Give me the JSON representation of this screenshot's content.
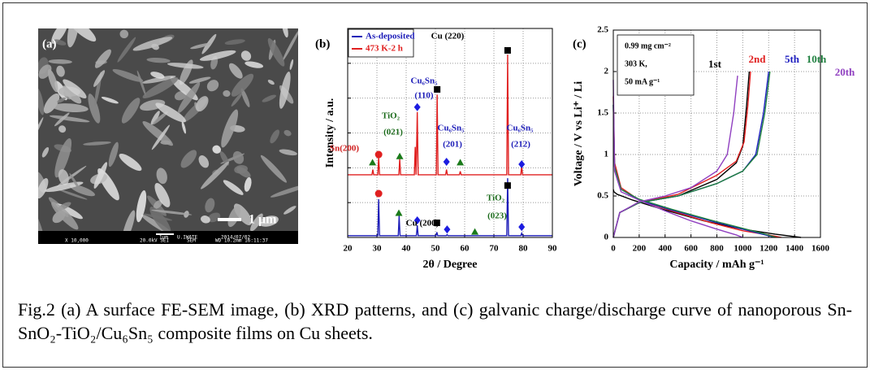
{
  "sem_image": {
    "label": "(a)",
    "scale_bar": "1 μm",
    "info_mag": "X 10,000",
    "info_kv": "20.0kV SEI",
    "info_mode": "SEM",
    "info_wd": "WD 10.2mm 16:11:37",
    "info_scale": "1μm",
    "info_org": "U.IWATE",
    "info_date": "2014/07/02"
  },
  "chart_data": [
    {
      "type": "line",
      "panel_label": "(b)",
      "x_label": "2θ / Degree",
      "y_label": "Intensity / a.u.",
      "xlim": [
        20,
        90
      ],
      "xticks": [
        20,
        30,
        40,
        50,
        60,
        70,
        80,
        90
      ],
      "ylim": [
        0,
        6
      ],
      "yticks": [
        0,
        1,
        2,
        3,
        4,
        5,
        6
      ],
      "ytick_labels": false,
      "grid": true,
      "legend": "upper left",
      "series": [
        {
          "name": "As-deposited",
          "color": "#1c1cb8",
          "x": [
            20,
            30.3,
            30.6,
            30.9,
            37.3,
            37.6,
            37.9,
            43.5,
            43.8,
            44.1,
            50.2,
            50.5,
            50.8,
            53.7,
            54,
            54.3,
            74.4,
            74.7,
            75,
            79.2,
            79.5,
            79.8,
            90
          ],
          "values": [
            0.05,
            0.05,
            1.1,
            0.05,
            0.05,
            0.62,
            0.05,
            0.05,
            0.35,
            0.05,
            0.05,
            0.15,
            0.05,
            0.05,
            0.08,
            0.05,
            0.05,
            1.7,
            0.05,
            0.05,
            0.12,
            0.05,
            0.05
          ]
        },
        {
          "name": "473 K-2 h",
          "color": "#e02020",
          "x": [
            20,
            28.3,
            28.6,
            28.9,
            30.3,
            30.6,
            30.9,
            37.5,
            37.8,
            38.1,
            42.8,
            43.1,
            43.4,
            43.8,
            44.1,
            50.3,
            50.6,
            50.9,
            53.5,
            53.8,
            54.1,
            58.2,
            58.5,
            58.8,
            74.4,
            74.7,
            75,
            79.2,
            79.5,
            79.8,
            90
          ],
          "values": [
            1.8,
            1.8,
            1.95,
            1.8,
            1.8,
            2.3,
            1.8,
            1.8,
            2.25,
            1.8,
            1.8,
            2.6,
            1.8,
            3.6,
            1.8,
            1.8,
            4.1,
            1.8,
            1.8,
            1.95,
            1.8,
            1.8,
            1.9,
            1.8,
            1.8,
            5.25,
            1.8,
            1.8,
            2.05,
            1.8,
            1.8
          ]
        }
      ],
      "markers": [
        {
          "shape": "square",
          "color": "#000000",
          "x": 74.7,
          "y": 5.37
        },
        {
          "shape": "square",
          "color": "#000000",
          "x": 50.6,
          "y": 4.25
        },
        {
          "shape": "diamond",
          "color": "#1c1ce0",
          "x": 43.8,
          "y": 3.74
        },
        {
          "shape": "circle",
          "color": "#e02020",
          "x": 30.6,
          "y": 2.38
        },
        {
          "shape": "triangle",
          "color": "#1a7a1a",
          "x": 37.8,
          "y": 2.33
        },
        {
          "shape": "triangle",
          "color": "#1a7a1a",
          "x": 28.5,
          "y": 2.15
        },
        {
          "shape": "triangle",
          "color": "#1a7a1a",
          "x": 58.5,
          "y": 2.15
        },
        {
          "shape": "diamond",
          "color": "#1c1ce0",
          "x": 53.8,
          "y": 2.17
        },
        {
          "shape": "diamond",
          "color": "#1c1ce0",
          "x": 79.5,
          "y": 2.1
        },
        {
          "shape": "circle",
          "color": "#e02020",
          "x": 30.6,
          "y": 1.26
        },
        {
          "shape": "triangle",
          "color": "#1a7a1a",
          "x": 37.5,
          "y": 0.7
        },
        {
          "shape": "diamond",
          "color": "#1c1ce0",
          "x": 43.8,
          "y": 0.49
        },
        {
          "shape": "square",
          "color": "#000000",
          "x": 50.5,
          "y": 0.42
        },
        {
          "shape": "diamond",
          "color": "#1c1ce0",
          "x": 54,
          "y": 0.23
        },
        {
          "shape": "square",
          "color": "#000000",
          "x": 74.7,
          "y": 1.49
        },
        {
          "shape": "triangle",
          "color": "#1a7a1a",
          "x": 63.5,
          "y": 0.16
        },
        {
          "shape": "diamond",
          "color": "#1c1ce0",
          "x": 79.5,
          "y": 0.3
        }
      ],
      "annotations": [
        {
          "text": "Cu (220)",
          "color": "#000000"
        },
        {
          "text": "Cu₆Sn₅",
          "color": "#1c1cb8"
        },
        {
          "text": "(110)",
          "color": "#1c1cb8"
        },
        {
          "text": "TiO₂",
          "color": "#1a6a1a"
        },
        {
          "text": "(021)",
          "color": "#1a6a1a"
        },
        {
          "text": "Sn(200)",
          "color": "#d02020"
        },
        {
          "text": "Cu₆Sn₅",
          "color": "#1c1cb8"
        },
        {
          "text": "(201)",
          "color": "#1c1cb8"
        },
        {
          "text": "Cu₆Sn₅",
          "color": "#1c1cb8"
        },
        {
          "text": "(212)",
          "color": "#1c1cb8"
        },
        {
          "text": "Cu (200)",
          "color": "#000000"
        },
        {
          "text": "TiO₂",
          "color": "#1a6a1a"
        },
        {
          "text": "(023)",
          "color": "#1a6a1a"
        }
      ]
    },
    {
      "type": "line",
      "panel_label": "(c)",
      "x_label": "Capacity / mAh g⁻¹",
      "y_label": "Voltage / V vs Li⁺ / Li",
      "xlim": [
        0,
        1600
      ],
      "xticks": [
        0,
        200,
        400,
        600,
        800,
        1000,
        1200,
        1400,
        1600
      ],
      "ylim": [
        0,
        2.5
      ],
      "yticks": [
        0,
        0.5,
        1,
        1.5,
        2,
        2.5
      ],
      "grid": true,
      "inset": [
        "0.99 mg cm⁻²",
        "303 K,",
        "50 mA g⁻¹"
      ],
      "series": [
        {
          "name": "1st",
          "color": "#000000",
          "x": [
            0,
            5,
            30,
            150,
            400,
            700,
            1000,
            1250,
            1450,
            null,
            0,
            50,
            200,
            500,
            800,
            950,
            1000,
            1030,
            1050
          ],
          "values": [
            0.58,
            0.55,
            0.52,
            0.45,
            0.33,
            0.2,
            0.1,
            0.04,
            0,
            null,
            0,
            0.3,
            0.42,
            0.5,
            0.7,
            0.9,
            1.1,
            1.6,
            2.0
          ]
        },
        {
          "name": "2nd",
          "color": "#e02020",
          "x": [
            0,
            10,
            60,
            200,
            450,
            750,
            1000,
            1200,
            1300,
            null,
            0,
            50,
            200,
            500,
            800,
            950,
            1010,
            1040,
            1060
          ],
          "values": [
            1.7,
            0.9,
            0.6,
            0.45,
            0.32,
            0.18,
            0.08,
            0.03,
            0,
            null,
            0,
            0.3,
            0.42,
            0.52,
            0.75,
            0.92,
            1.15,
            1.6,
            2.0
          ]
        },
        {
          "name": "5th",
          "color": "#2020c0",
          "x": [
            0,
            10,
            60,
            200,
            450,
            750,
            1000,
            1150,
            1250,
            null,
            0,
            50,
            200,
            500,
            800,
            1000,
            1100,
            1160,
            1200
          ],
          "values": [
            1.6,
            0.85,
            0.58,
            0.45,
            0.33,
            0.2,
            0.1,
            0.04,
            0,
            null,
            0,
            0.3,
            0.42,
            0.5,
            0.65,
            0.8,
            1.0,
            1.5,
            2.0
          ]
        },
        {
          "name": "10th",
          "color": "#208040",
          "x": [
            0,
            10,
            60,
            200,
            450,
            750,
            1000,
            1150,
            1260,
            null,
            0,
            50,
            200,
            500,
            800,
            1000,
            1110,
            1170,
            1210
          ],
          "values": [
            1.6,
            0.85,
            0.58,
            0.46,
            0.34,
            0.21,
            0.11,
            0.05,
            0,
            null,
            0,
            0.3,
            0.42,
            0.5,
            0.65,
            0.8,
            1.0,
            1.5,
            2.0
          ]
        },
        {
          "name": "20th",
          "color": "#9040c0",
          "x": [
            0,
            10,
            60,
            200,
            400,
            600,
            800,
            950,
            1000,
            null,
            0,
            50,
            200,
            400,
            600,
            800,
            880,
            930,
            960
          ],
          "values": [
            1.9,
            0.8,
            0.55,
            0.45,
            0.32,
            0.2,
            0.1,
            0.03,
            0,
            null,
            0,
            0.3,
            0.43,
            0.5,
            0.6,
            0.8,
            1.0,
            1.5,
            1.95
          ]
        }
      ]
    }
  ],
  "caption": "Fig.2 (a) A surface FE-SEM image, (b) XRD patterns, and (c) galvanic charge/discharge curve of nanoporous Sn-SnO₂-TiO₂/Cu₆Sn₅ composite films on Cu sheets."
}
